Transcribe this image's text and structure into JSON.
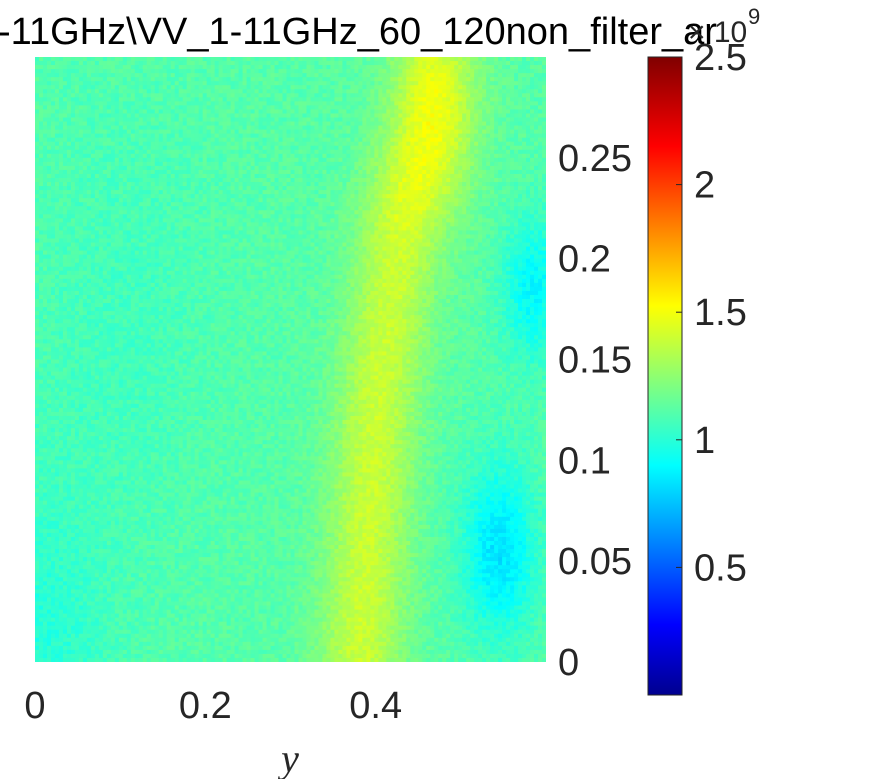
{
  "chart_data": {
    "type": "heatmap",
    "title": "-11GHz\\VV_1-11GHz_60_120non_filter_ar",
    "xlabel": "y",
    "ylabel": "",
    "xlim": [
      0,
      0.6
    ],
    "ylim": [
      0,
      0.3
    ],
    "x_ticks": [
      "0",
      "0.2",
      "0.4"
    ],
    "x_tick_values": [
      0,
      0.2,
      0.4
    ],
    "y_ticks": [
      "0",
      "0.05",
      "0.1",
      "0.15",
      "0.2",
      "0.25"
    ],
    "y_tick_values": [
      0,
      0.05,
      0.1,
      0.15,
      0.2,
      0.25
    ],
    "colorbar": {
      "colormap": "jet",
      "clim": [
        0,
        2.5
      ],
      "ticks": [
        "0.5",
        "1",
        "1.5",
        "2",
        "2.5"
      ],
      "tick_values": [
        0.5,
        1,
        1.5,
        2,
        2.5
      ],
      "exponent_label": "× 10",
      "exponent_power": "9"
    },
    "value_range_estimate": [
      0.8,
      1.6
    ],
    "features": [
      {
        "description": "diagonal yellow-green band",
        "x_range": [
          0.35,
          0.5
        ],
        "y_range": [
          0.0,
          0.2
        ],
        "value": 1.45
      },
      {
        "description": "yellow spot at top",
        "x": 0.48,
        "y": 0.28,
        "value": 1.55
      },
      {
        "description": "blue patch lower right",
        "x": 0.54,
        "y": 0.05,
        "value": 0.85
      },
      {
        "description": "blue patch right",
        "x": 0.58,
        "y": 0.18,
        "value": 0.9
      }
    ]
  }
}
